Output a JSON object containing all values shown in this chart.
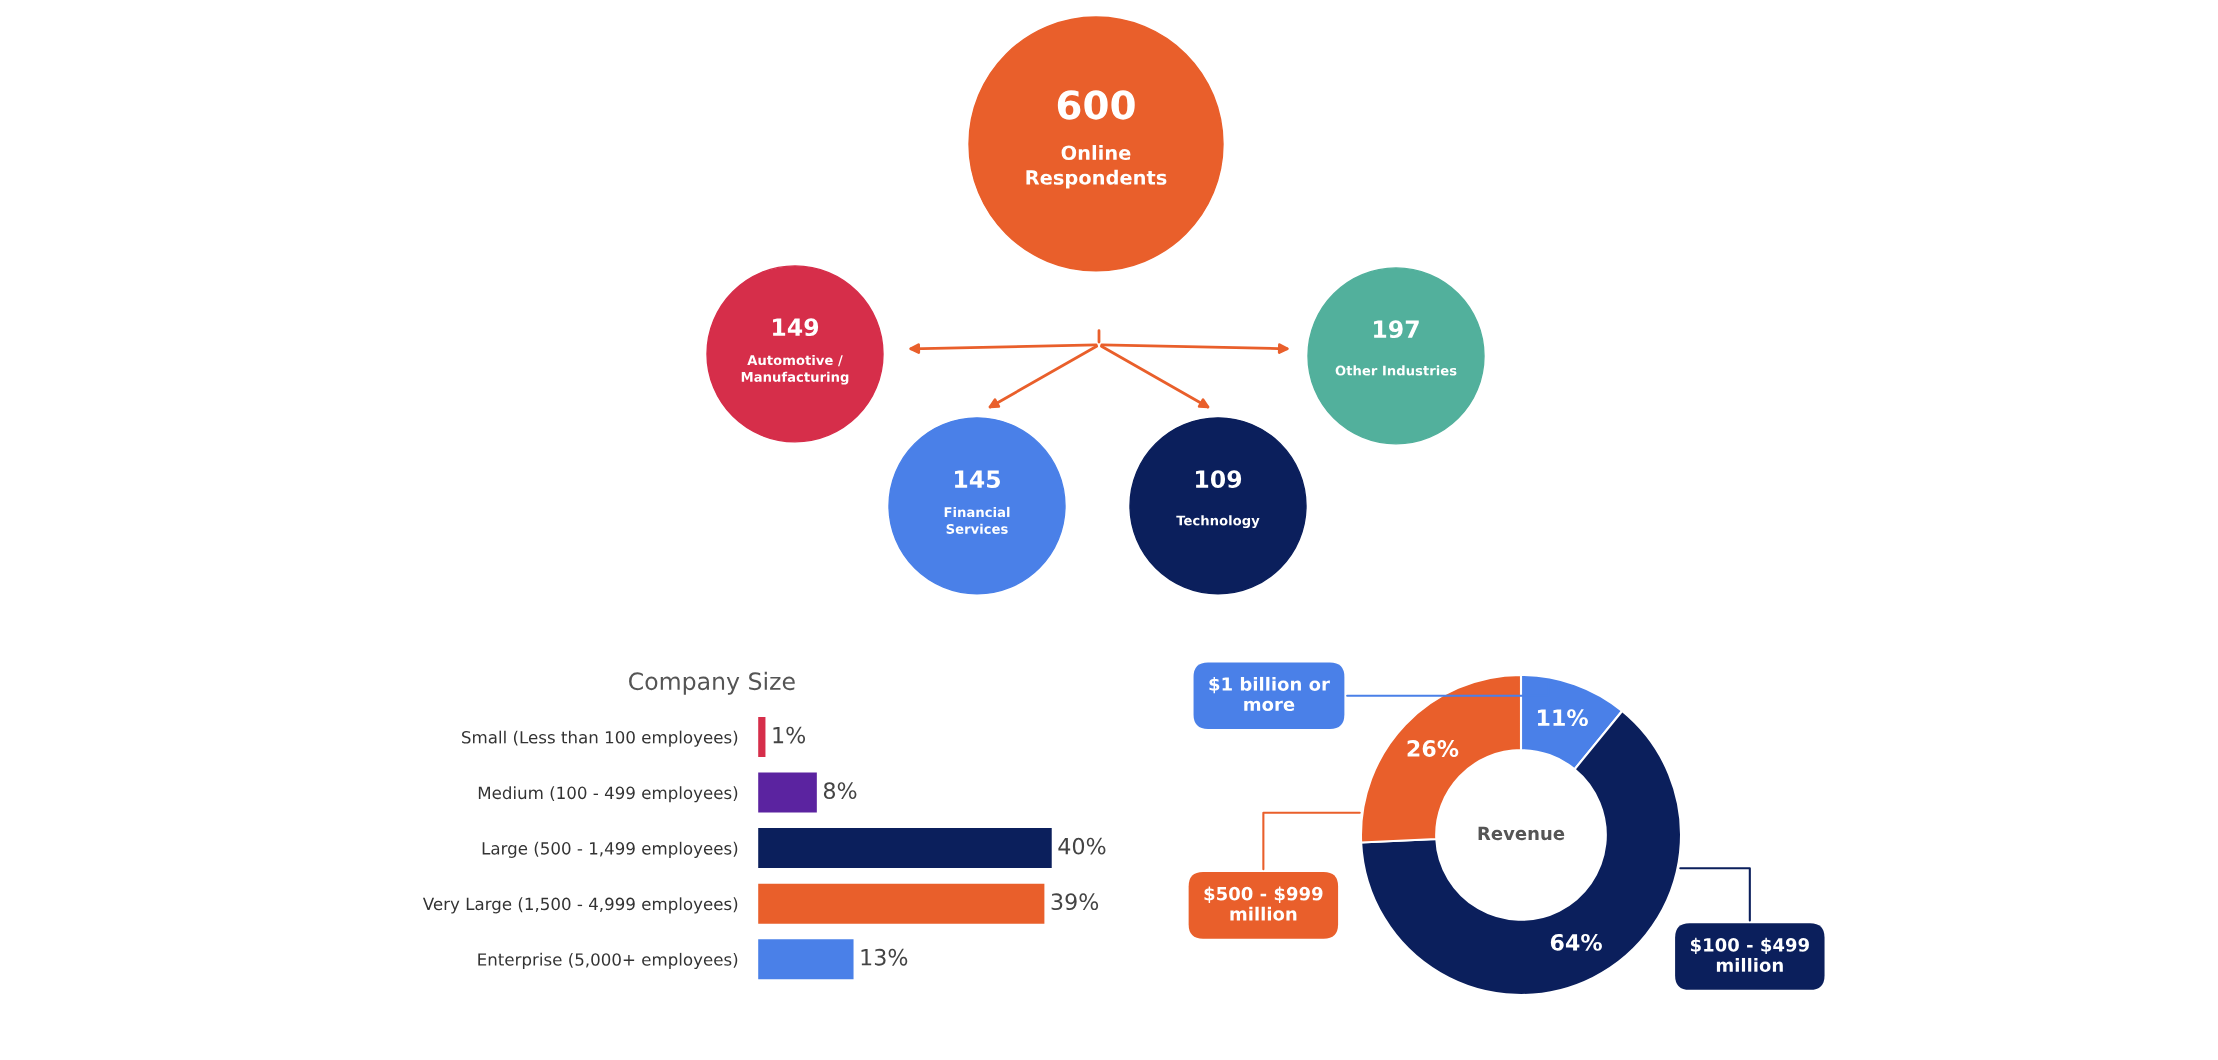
{
  "chart_data": [
    {
      "type": "other",
      "categories": [
        "Online\nRespondents",
        "Automotive /\nManufacturing",
        "Other Industries",
        "Financial\nServices",
        "Technology"
      ],
      "values": [
        600,
        149,
        197,
        145,
        109
      ],
      "value_labels": [
        "600",
        "149",
        "197",
        "145",
        "109"
      ],
      "colors": [
        "#e95f2b",
        "#d62e4a",
        "#52b09c",
        "#4a80e8",
        "#0b1f5c"
      ]
    },
    {
      "type": "bar",
      "orientation": "horizontal",
      "title": "Company Size",
      "categories": [
        "Small (Less than 100 employees)",
        "Medium (100 - 499 employees)",
        "Large (500 - 1,499 employees)",
        "Very Large (1,500 - 4,999 employees)",
        "Enterprise (5,000+ employees)"
      ],
      "values": [
        1,
        8,
        40,
        39,
        13
      ],
      "colors": [
        "#d62e4a",
        "#5b23a0",
        "#0b1f5c",
        "#e95f2b",
        "#4a80e8"
      ],
      "value_labels": [
        "1%",
        "8%",
        "40%",
        "39%",
        "13%"
      ],
      "tick_labels": "y"
    },
    {
      "type": "donut",
      "title": "Revenue",
      "categories": [
        "$1 billion or\nmore",
        "$100 - $499\nmillion",
        "$500 - $999\nmillion"
      ],
      "values": [
        11,
        64,
        26
      ],
      "colors": [
        "#4a80e8",
        "#0b1f5c",
        "#e95f2b"
      ],
      "value_labels": [
        "11%",
        "64%",
        "26%"
      ]
    }
  ]
}
